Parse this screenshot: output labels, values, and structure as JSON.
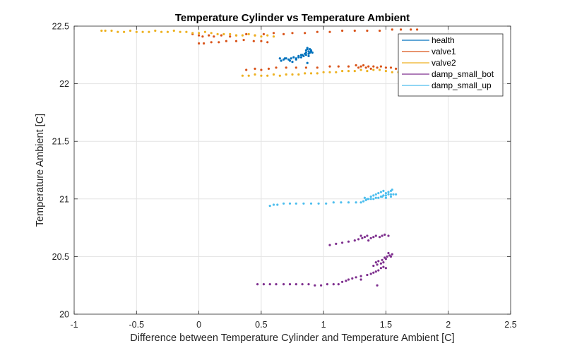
{
  "chart_data": {
    "type": "scatter",
    "title": "Temperature Cylinder vs Temperature Ambient",
    "xlabel": "Difference between Temperature Cylinder and Temperature Ambient [C]",
    "ylabel": "Temperature Ambient [C]",
    "xlim": [
      -1,
      2.5
    ],
    "ylim": [
      20,
      22.5
    ],
    "xticks": [
      -1,
      -0.5,
      0,
      0.5,
      1,
      1.5,
      2,
      2.5
    ],
    "yticks": [
      20,
      20.5,
      21,
      21.5,
      22,
      22.5
    ],
    "xtick_labels": [
      "-1",
      "-0.5",
      "0",
      "0.5",
      "1",
      "1.5",
      "2",
      "2.5"
    ],
    "ytick_labels": [
      "20",
      "20.5",
      "21",
      "21.5",
      "22",
      "22.5"
    ],
    "grid": true,
    "legend_position": "top-right",
    "series": [
      {
        "name": "health",
        "color": "#0072BD",
        "points": [
          [
            0.65,
            22.22
          ],
          [
            0.68,
            22.21
          ],
          [
            0.7,
            22.22
          ],
          [
            0.72,
            22.21
          ],
          [
            0.74,
            22.22
          ],
          [
            0.76,
            22.23
          ],
          [
            0.78,
            22.22
          ],
          [
            0.8,
            22.24
          ],
          [
            0.82,
            22.23
          ],
          [
            0.83,
            22.25
          ],
          [
            0.85,
            22.26
          ],
          [
            0.86,
            22.27
          ],
          [
            0.86,
            22.29
          ],
          [
            0.87,
            22.3
          ],
          [
            0.87,
            22.31
          ],
          [
            0.88,
            22.28
          ],
          [
            0.88,
            22.26
          ],
          [
            0.89,
            22.3
          ],
          [
            0.89,
            22.27
          ],
          [
            0.9,
            22.29
          ],
          [
            0.9,
            22.28
          ],
          [
            0.91,
            22.27
          ],
          [
            0.88,
            22.24
          ],
          [
            0.86,
            22.25
          ],
          [
            0.84,
            22.24
          ],
          [
            0.82,
            22.25
          ],
          [
            0.8,
            22.23
          ],
          [
            0.78,
            22.21
          ],
          [
            0.73,
            22.2
          ],
          [
            0.69,
            22.22
          ],
          [
            0.87,
            22.18
          ],
          [
            0.66,
            22.2
          ],
          [
            0.75,
            22.19
          ]
        ]
      },
      {
        "name": "valve1",
        "color": "#D95319",
        "points": [
          [
            -0.05,
            22.43
          ],
          [
            0.0,
            22.42
          ],
          [
            0.03,
            22.41
          ],
          [
            0.08,
            22.42
          ],
          [
            0.12,
            22.41
          ],
          [
            0.18,
            22.42
          ],
          [
            0.25,
            22.41
          ],
          [
            0.3,
            22.42
          ],
          [
            0.38,
            22.43
          ],
          [
            0.45,
            22.42
          ],
          [
            0.52,
            22.43
          ],
          [
            0.6,
            22.44
          ],
          [
            0.68,
            22.43
          ],
          [
            0.75,
            22.44
          ],
          [
            0.85,
            22.44
          ],
          [
            0.95,
            22.45
          ],
          [
            1.05,
            22.45
          ],
          [
            1.15,
            22.46
          ],
          [
            1.25,
            22.46
          ],
          [
            1.35,
            22.46
          ],
          [
            1.45,
            22.46
          ],
          [
            1.55,
            22.47
          ],
          [
            1.62,
            22.47
          ],
          [
            1.7,
            22.47
          ],
          [
            1.75,
            22.47
          ],
          [
            0.0,
            22.35
          ],
          [
            0.04,
            22.35
          ],
          [
            0.1,
            22.36
          ],
          [
            0.16,
            22.36
          ],
          [
            0.22,
            22.37
          ],
          [
            0.3,
            22.37
          ],
          [
            0.36,
            22.38
          ],
          [
            0.44,
            22.37
          ],
          [
            0.5,
            22.37
          ],
          [
            0.55,
            22.36
          ],
          [
            0.38,
            22.12
          ],
          [
            0.45,
            22.13
          ],
          [
            0.5,
            22.12
          ],
          [
            0.56,
            22.13
          ],
          [
            0.62,
            22.14
          ],
          [
            0.7,
            22.14
          ],
          [
            0.78,
            22.14
          ],
          [
            0.86,
            22.14
          ],
          [
            0.95,
            22.14
          ],
          [
            1.05,
            22.15
          ],
          [
            1.12,
            22.15
          ],
          [
            1.2,
            22.15
          ],
          [
            1.26,
            22.16
          ],
          [
            1.28,
            22.14
          ],
          [
            1.3,
            22.15
          ],
          [
            1.32,
            22.16
          ],
          [
            1.34,
            22.14
          ],
          [
            1.36,
            22.15
          ],
          [
            1.38,
            22.13
          ],
          [
            1.4,
            22.15
          ],
          [
            1.43,
            22.14
          ],
          [
            1.46,
            22.15
          ],
          [
            1.5,
            22.14
          ],
          [
            1.54,
            22.14
          ],
          [
            1.58,
            22.13
          ],
          [
            1.62,
            22.13
          ],
          [
            1.66,
            22.12
          ]
        ]
      },
      {
        "name": "valve2",
        "color": "#EDB120",
        "points": [
          [
            -0.78,
            22.46
          ],
          [
            -0.75,
            22.46
          ],
          [
            -0.7,
            22.46
          ],
          [
            -0.65,
            22.45
          ],
          [
            -0.6,
            22.45
          ],
          [
            -0.55,
            22.46
          ],
          [
            -0.5,
            22.45
          ],
          [
            -0.45,
            22.45
          ],
          [
            -0.4,
            22.45
          ],
          [
            -0.35,
            22.46
          ],
          [
            -0.3,
            22.45
          ],
          [
            -0.25,
            22.45
          ],
          [
            -0.2,
            22.46
          ],
          [
            -0.15,
            22.45
          ],
          [
            -0.1,
            22.45
          ],
          [
            -0.05,
            22.44
          ],
          [
            0.0,
            22.44
          ],
          [
            0.05,
            22.45
          ],
          [
            0.1,
            22.44
          ],
          [
            0.15,
            22.43
          ],
          [
            0.2,
            22.43
          ],
          [
            0.25,
            22.43
          ],
          [
            0.3,
            22.42
          ],
          [
            0.35,
            22.42
          ],
          [
            0.4,
            22.43
          ],
          [
            0.45,
            22.42
          ],
          [
            0.5,
            22.41
          ],
          [
            0.55,
            22.42
          ],
          [
            0.6,
            22.41
          ],
          [
            0.35,
            22.07
          ],
          [
            0.4,
            22.07
          ],
          [
            0.45,
            22.08
          ],
          [
            0.5,
            22.07
          ],
          [
            0.55,
            22.07
          ],
          [
            0.6,
            22.08
          ],
          [
            0.65,
            22.07
          ],
          [
            0.7,
            22.08
          ],
          [
            0.75,
            22.08
          ],
          [
            0.8,
            22.08
          ],
          [
            0.85,
            22.09
          ],
          [
            0.9,
            22.09
          ],
          [
            0.95,
            22.09
          ],
          [
            1.0,
            22.1
          ],
          [
            1.05,
            22.1
          ],
          [
            1.1,
            22.1
          ],
          [
            1.15,
            22.11
          ],
          [
            1.2,
            22.11
          ],
          [
            1.25,
            22.11
          ],
          [
            1.3,
            22.12
          ],
          [
            1.35,
            22.11
          ],
          [
            1.4,
            22.12
          ],
          [
            1.45,
            22.12
          ],
          [
            1.5,
            22.11
          ],
          [
            1.55,
            22.1
          ],
          [
            1.6,
            22.1
          ],
          [
            1.65,
            22.09
          ],
          [
            1.7,
            22.08
          ],
          [
            1.75,
            22.08
          ]
        ]
      },
      {
        "name": "damp_small_bot",
        "color": "#7E2F8E",
        "points": [
          [
            0.47,
            20.26
          ],
          [
            0.52,
            20.26
          ],
          [
            0.57,
            20.26
          ],
          [
            0.62,
            20.26
          ],
          [
            0.68,
            20.26
          ],
          [
            0.73,
            20.26
          ],
          [
            0.78,
            20.26
          ],
          [
            0.83,
            20.26
          ],
          [
            0.88,
            20.26
          ],
          [
            0.93,
            20.25
          ],
          [
            0.98,
            20.25
          ],
          [
            1.03,
            20.26
          ],
          [
            1.08,
            20.26
          ],
          [
            1.12,
            20.26
          ],
          [
            1.15,
            20.28
          ],
          [
            1.18,
            20.29
          ],
          [
            1.2,
            20.3
          ],
          [
            1.23,
            20.31
          ],
          [
            1.26,
            20.32
          ],
          [
            1.3,
            20.33
          ],
          [
            1.35,
            20.34
          ],
          [
            1.38,
            20.35
          ],
          [
            1.4,
            20.36
          ],
          [
            1.42,
            20.37
          ],
          [
            1.44,
            20.38
          ],
          [
            1.46,
            20.4
          ],
          [
            1.48,
            20.41
          ],
          [
            1.4,
            20.42
          ],
          [
            1.43,
            20.43
          ],
          [
            1.46,
            20.44
          ],
          [
            1.48,
            20.45
          ],
          [
            1.42,
            20.45
          ],
          [
            1.44,
            20.46
          ],
          [
            1.47,
            20.47
          ],
          [
            1.5,
            20.48
          ],
          [
            1.49,
            20.49
          ],
          [
            1.51,
            20.5
          ],
          [
            1.53,
            20.51
          ],
          [
            1.55,
            20.52
          ],
          [
            1.52,
            20.53
          ],
          [
            1.54,
            20.5
          ],
          [
            1.5,
            20.4
          ],
          [
            1.3,
            20.3
          ],
          [
            1.43,
            20.25
          ],
          [
            1.05,
            20.6
          ],
          [
            1.1,
            20.61
          ],
          [
            1.15,
            20.62
          ],
          [
            1.2,
            20.63
          ],
          [
            1.25,
            20.64
          ],
          [
            1.28,
            20.65
          ],
          [
            1.31,
            20.66
          ],
          [
            1.33,
            20.67
          ],
          [
            1.3,
            20.68
          ],
          [
            1.35,
            20.68
          ],
          [
            1.38,
            20.66
          ],
          [
            1.4,
            20.67
          ],
          [
            1.42,
            20.68
          ],
          [
            1.45,
            20.67
          ],
          [
            1.47,
            20.68
          ],
          [
            1.49,
            20.69
          ],
          [
            1.52,
            20.68
          ],
          [
            1.36,
            20.64
          ]
        ]
      },
      {
        "name": "damp_small_up",
        "color": "#4DBEEE",
        "points": [
          [
            0.57,
            20.94
          ],
          [
            0.6,
            20.95
          ],
          [
            0.63,
            20.95
          ],
          [
            0.68,
            20.96
          ],
          [
            0.73,
            20.96
          ],
          [
            0.78,
            20.96
          ],
          [
            0.84,
            20.96
          ],
          [
            0.9,
            20.96
          ],
          [
            0.96,
            20.96
          ],
          [
            1.02,
            20.96
          ],
          [
            1.08,
            20.97
          ],
          [
            1.14,
            20.97
          ],
          [
            1.2,
            20.97
          ],
          [
            1.26,
            20.97
          ],
          [
            1.3,
            20.97
          ],
          [
            1.32,
            20.98
          ],
          [
            1.34,
            20.99
          ],
          [
            1.36,
            21.0
          ],
          [
            1.38,
            21.0
          ],
          [
            1.4,
            21.0
          ],
          [
            1.42,
            21.01
          ],
          [
            1.44,
            21.01
          ],
          [
            1.46,
            21.02
          ],
          [
            1.48,
            21.03
          ],
          [
            1.5,
            21.03
          ],
          [
            1.52,
            21.04
          ],
          [
            1.54,
            21.04
          ],
          [
            1.56,
            21.04
          ],
          [
            1.58,
            21.04
          ],
          [
            1.5,
            21.05
          ],
          [
            1.52,
            21.06
          ],
          [
            1.54,
            21.07
          ],
          [
            1.48,
            21.07
          ],
          [
            1.46,
            21.06
          ],
          [
            1.44,
            21.05
          ],
          [
            1.42,
            21.04
          ],
          [
            1.38,
            21.02
          ],
          [
            1.35,
            21.0
          ],
          [
            1.5,
            21.01
          ],
          [
            1.54,
            21.02
          ],
          [
            1.47,
            21.02
          ],
          [
            1.4,
            21.03
          ],
          [
            1.33,
            21.01
          ],
          [
            1.55,
            21.08
          ]
        ]
      }
    ]
  }
}
